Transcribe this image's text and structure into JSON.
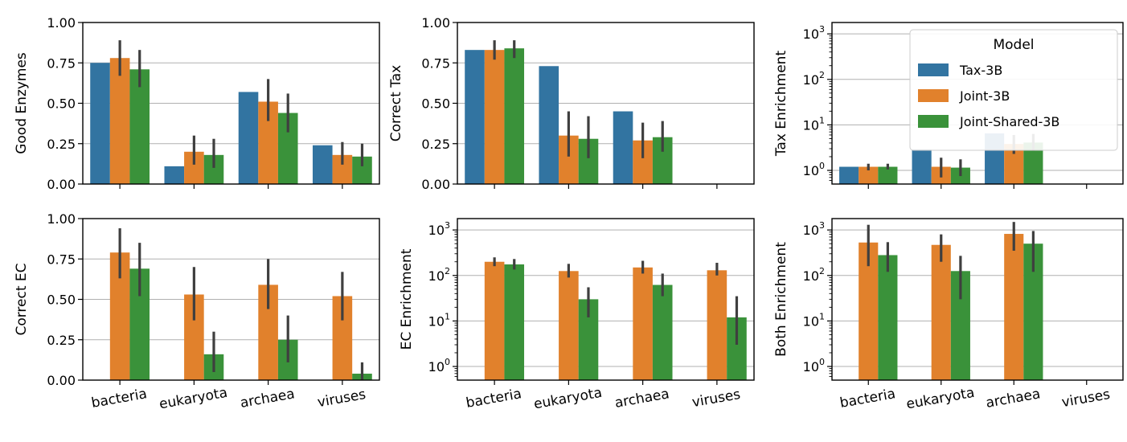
{
  "colors": {
    "Tax-3B": "#3274a1",
    "Joint-3B": "#e1812c",
    "Joint-Shared-3B": "#3a923a",
    "errorbar": "#3f3f3f",
    "grid": "#b0b0b0"
  },
  "legend": {
    "title": "Model",
    "entries": [
      "Tax-3B",
      "Joint-3B",
      "Joint-Shared-3B"
    ],
    "placement": "top-right of top-right panel"
  },
  "chart_data": [
    {
      "type": "bar",
      "scale": "linear",
      "ylim": [
        0,
        1
      ],
      "grid": "y",
      "ylabel": "Good Enzymes",
      "yticks": [
        "0.00",
        "0.25",
        "0.50",
        "0.75",
        "1.00"
      ],
      "categories": [
        "bacteria",
        "eukaryota",
        "archaea",
        "viruses"
      ],
      "show_categories": false,
      "series": [
        {
          "name": "Tax-3B",
          "values": [
            0.75,
            0.11,
            0.57,
            0.24
          ],
          "errors": [
            null,
            null,
            null,
            null
          ]
        },
        {
          "name": "Joint-3B",
          "values": [
            0.78,
            0.2,
            0.51,
            0.18
          ],
          "errors": [
            [
              0.67,
              0.89
            ],
            [
              0.12,
              0.3
            ],
            [
              0.39,
              0.65
            ],
            [
              0.12,
              0.26
            ]
          ]
        },
        {
          "name": "Joint-Shared-3B",
          "values": [
            0.71,
            0.18,
            0.44,
            0.17
          ],
          "errors": [
            [
              0.6,
              0.83
            ],
            [
              0.1,
              0.28
            ],
            [
              0.32,
              0.56
            ],
            [
              0.11,
              0.25
            ]
          ]
        }
      ]
    },
    {
      "type": "bar",
      "scale": "linear",
      "ylim": [
        0,
        1
      ],
      "grid": "y",
      "ylabel": "Correct Tax",
      "yticks": [
        "0.00",
        "0.25",
        "0.50",
        "0.75",
        "1.00"
      ],
      "categories": [
        "bacteria",
        "eukaryota",
        "archaea",
        "viruses"
      ],
      "show_categories": false,
      "series": [
        {
          "name": "Tax-3B",
          "values": [
            0.83,
            0.73,
            0.45,
            0.0
          ],
          "errors": [
            null,
            null,
            null,
            null
          ]
        },
        {
          "name": "Joint-3B",
          "values": [
            0.83,
            0.3,
            0.27,
            0.0
          ],
          "errors": [
            [
              0.77,
              0.89
            ],
            [
              0.17,
              0.45
            ],
            [
              0.16,
              0.38
            ],
            null
          ]
        },
        {
          "name": "Joint-Shared-3B",
          "values": [
            0.84,
            0.28,
            0.29,
            0.0
          ],
          "errors": [
            [
              0.78,
              0.89
            ],
            [
              0.16,
              0.42
            ],
            [
              0.2,
              0.39
            ],
            null
          ]
        }
      ]
    },
    {
      "type": "bar",
      "scale": "log",
      "ylim_log10": [
        -0.3,
        3.25
      ],
      "grid": "y",
      "ylabel": "Tax Enrichment",
      "yticks": [
        "10^0",
        "10^1",
        "10^2",
        "10^3"
      ],
      "categories": [
        "bacteria",
        "eukaryota",
        "archaea",
        "viruses"
      ],
      "show_categories": false,
      "series": [
        {
          "name": "Tax-3B",
          "values": [
            1.2,
            2.9,
            6.5,
            null
          ],
          "errors": [
            null,
            null,
            null,
            null
          ]
        },
        {
          "name": "Joint-3B",
          "values": [
            1.2,
            1.2,
            3.8,
            null
          ],
          "errors": [
            [
              1.0,
              1.4
            ],
            [
              0.7,
              1.9
            ],
            [
              2.3,
              6.0
            ],
            null
          ]
        },
        {
          "name": "Joint-Shared-3B",
          "values": [
            1.2,
            1.15,
            4.1,
            null
          ],
          "errors": [
            [
              1.05,
              1.4
            ],
            [
              0.75,
              1.75
            ],
            [
              2.7,
              6.3
            ],
            null
          ]
        }
      ]
    },
    {
      "type": "bar",
      "scale": "linear",
      "ylim": [
        0,
        1
      ],
      "grid": "y",
      "ylabel": "Correct EC",
      "yticks": [
        "0.00",
        "0.25",
        "0.50",
        "0.75",
        "1.00"
      ],
      "categories": [
        "bacteria",
        "eukaryota",
        "archaea",
        "viruses"
      ],
      "show_categories": true,
      "series": [
        {
          "name": "Tax-3B",
          "values": [
            null,
            null,
            null,
            null
          ],
          "errors": [
            null,
            null,
            null,
            null
          ]
        },
        {
          "name": "Joint-3B",
          "values": [
            0.79,
            0.53,
            0.59,
            0.52
          ],
          "errors": [
            [
              0.63,
              0.94
            ],
            [
              0.37,
              0.7
            ],
            [
              0.44,
              0.75
            ],
            [
              0.37,
              0.67
            ]
          ]
        },
        {
          "name": "Joint-Shared-3B",
          "values": [
            0.69,
            0.16,
            0.25,
            0.04
          ],
          "errors": [
            [
              0.52,
              0.85
            ],
            [
              0.05,
              0.3
            ],
            [
              0.11,
              0.4
            ],
            [
              0.0,
              0.11
            ]
          ]
        }
      ]
    },
    {
      "type": "bar",
      "scale": "log",
      "ylim_log10": [
        -0.3,
        3.25
      ],
      "grid": "y",
      "ylabel": "EC Enrichment",
      "yticks": [
        "10^0",
        "10^1",
        "10^2",
        "10^3"
      ],
      "categories": [
        "bacteria",
        "eukaryota",
        "archaea",
        "viruses"
      ],
      "show_categories": true,
      "series": [
        {
          "name": "Tax-3B",
          "values": [
            null,
            null,
            null,
            null
          ],
          "errors": [
            null,
            null,
            null,
            null
          ]
        },
        {
          "name": "Joint-3B",
          "values": [
            200,
            125,
            150,
            130
          ],
          "errors": [
            [
              160,
              250
            ],
            [
              90,
              180
            ],
            [
              110,
              210
            ],
            [
              100,
              190
            ]
          ]
        },
        {
          "name": "Joint-Shared-3B",
          "values": [
            175,
            30,
            62,
            12
          ],
          "errors": [
            [
              135,
              230
            ],
            [
              12,
              55
            ],
            [
              35,
              110
            ],
            [
              3,
              35
            ]
          ]
        }
      ]
    },
    {
      "type": "bar",
      "scale": "log",
      "ylim_log10": [
        -0.3,
        3.25
      ],
      "grid": "y",
      "ylabel": "Both Enrichment",
      "yticks": [
        "10^0",
        "10^1",
        "10^2",
        "10^3"
      ],
      "categories": [
        "bacteria",
        "eukaryota",
        "archaea",
        "viruses"
      ],
      "show_categories": true,
      "series": [
        {
          "name": "Tax-3B",
          "values": [
            null,
            null,
            null,
            null
          ],
          "errors": [
            null,
            null,
            null,
            null
          ]
        },
        {
          "name": "Joint-3B",
          "values": [
            530,
            470,
            820,
            null
          ],
          "errors": [
            [
              160,
              1300
            ],
            [
              200,
              800
            ],
            [
              350,
              1500
            ],
            null
          ]
        },
        {
          "name": "Joint-Shared-3B",
          "values": [
            280,
            125,
            500,
            null
          ],
          "errors": [
            [
              120,
              540
            ],
            [
              30,
              270
            ],
            [
              120,
              950
            ],
            null
          ]
        }
      ]
    }
  ]
}
